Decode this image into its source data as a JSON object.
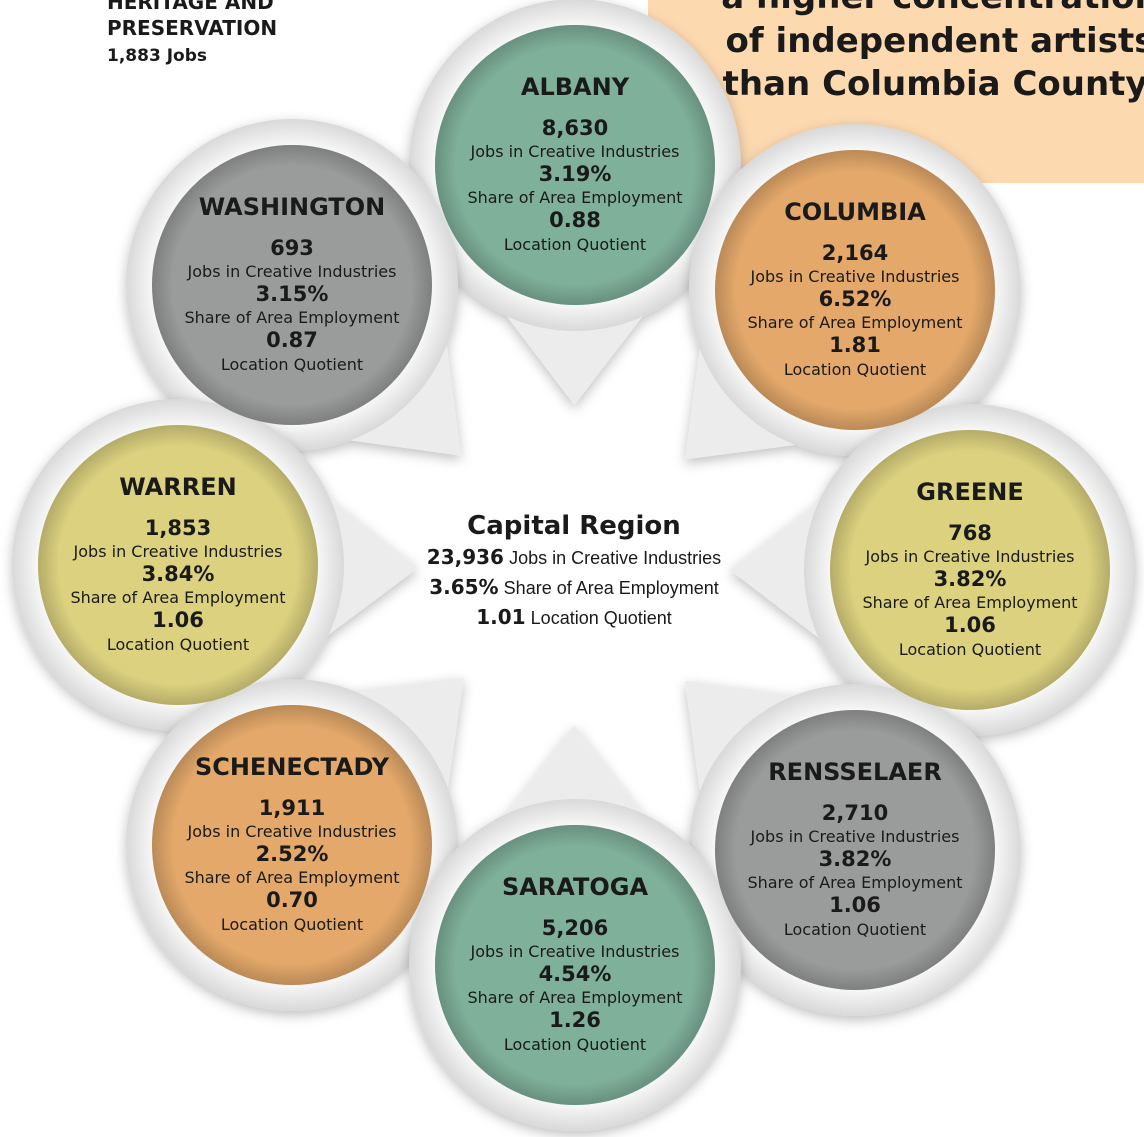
{
  "heading": {
    "title_lines": [
      "HERITAGE AND",
      "PRESERVATION"
    ],
    "jobs": "1,883 Jobs"
  },
  "callout": {
    "lines": [
      "a higher concentration",
      "of independent artists",
      "than Columbia County."
    ]
  },
  "center": {
    "name": "Capital Region",
    "rows": [
      {
        "value": "23,936",
        "label": "Jobs in Creative Industries"
      },
      {
        "value": "3.65%",
        "label": "Share of Area Employment"
      },
      {
        "value": "1.01",
        "label": "Location Quotient"
      }
    ]
  },
  "counties": [
    {
      "name": "ALBANY",
      "color": "#7fb09a",
      "jobs": "8,630",
      "jobs_label": "Jobs in Creative Industries",
      "share": "3.19%",
      "share_label": "Share of Area Employment",
      "lq": "0.88",
      "lq_label": "Location Quotient"
    },
    {
      "name": "WASHINGTON",
      "color": "#9a9c9b",
      "jobs": "693",
      "jobs_label": "Jobs in Creative Industries",
      "share": "3.15%",
      "share_label": "Share of Area Employment",
      "lq": "0.87",
      "lq_label": "Location Quotient"
    },
    {
      "name": "COLUMBIA",
      "color": "#e3a86a",
      "jobs": "2,164",
      "jobs_label": "Jobs in Creative Industries",
      "share": "6.52%",
      "share_label": "Share of Area Employment",
      "lq": "1.81",
      "lq_label": "Location Quotient"
    },
    {
      "name": "WARREN",
      "color": "#dcd17f",
      "jobs": "1,853",
      "jobs_label": "Jobs in Creative Industries",
      "share": "3.84%",
      "share_label": "Share of Area Employment",
      "lq": "1.06",
      "lq_label": "Location Quotient"
    },
    {
      "name": "GREENE",
      "color": "#dcd17f",
      "jobs": "768",
      "jobs_label": "Jobs in Creative Industries",
      "share": "3.82%",
      "share_label": "Share of Area Employment",
      "lq": "1.06",
      "lq_label": "Location Quotient"
    },
    {
      "name": "SCHENECTADY",
      "color": "#e3a86a",
      "jobs": "1,911",
      "jobs_label": "Jobs in Creative Industries",
      "share": "2.52%",
      "share_label": "Share of Area Employment",
      "lq": "0.70",
      "lq_label": "Location Quotient"
    },
    {
      "name": "RENSSELAER",
      "color": "#9a9c9b",
      "jobs": "2,710",
      "jobs_label": "Jobs in Creative Industries",
      "share": "3.82%",
      "share_label": "Share of Area Employment",
      "lq": "1.06",
      "lq_label": "Location Quotient"
    },
    {
      "name": "SARATOGA",
      "color": "#7fb09a",
      "jobs": "5,206",
      "jobs_label": "Jobs in Creative Industries",
      "share": "4.54%",
      "share_label": "Share of Area Employment",
      "lq": "1.26",
      "lq_label": "Location Quotient"
    }
  ]
}
